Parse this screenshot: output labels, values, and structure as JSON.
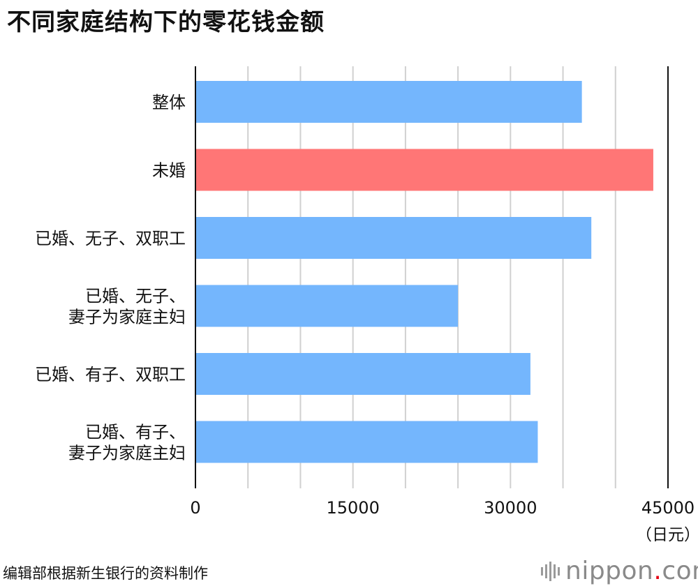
{
  "title": "不同家庭结构下的零花钱金额",
  "source": "编辑部根据新生银行的资料制作",
  "logo": {
    "name": "nippon",
    "dot": ".",
    "tld": "com"
  },
  "colors": {
    "primary": "#74b6fd",
    "highlight": "#ff7676",
    "grid": "#d0d0d0",
    "axis": "#111111"
  },
  "chart_data": {
    "type": "bar",
    "orientation": "horizontal",
    "categories": [
      [
        "整体"
      ],
      [
        "未婚"
      ],
      [
        "已婚、无子、双职工"
      ],
      [
        "已婚、无子、",
        "妻子为家庭主妇"
      ],
      [
        "已婚、有子、双职工"
      ],
      [
        "已婚、有子、",
        "妻子为家庭主妇"
      ]
    ],
    "values": [
      36800,
      43600,
      37700,
      25000,
      31900,
      32600
    ],
    "highlight_index": 1,
    "xlim": [
      0,
      45000
    ],
    "xticks": [
      0,
      15000,
      30000,
      45000
    ],
    "minor_grid_step": 5000,
    "unit_label": "（日元）",
    "grid": true
  }
}
